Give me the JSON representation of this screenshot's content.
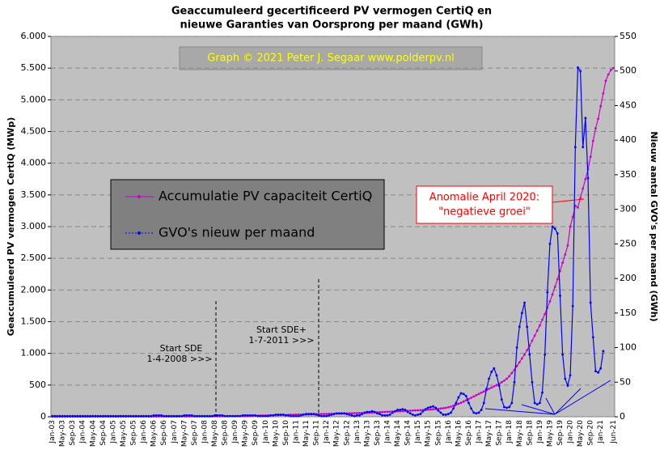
{
  "chart_data": {
    "type": "line",
    "title": [
      "Geaccumuleerd  gecertificeerd  PV  vermogen  CertiQ  en",
      "nieuwe  Garanties  van Oorsprong  per maand  (GWh)"
    ],
    "credit": "Graph  ©  2021  Peter  J.  Segaar   www.polderpv.nl",
    "ylabel": "Geaccumuleerd PV vermogen CertiQ (MWp)",
    "y2label": "Nieuw aantal GVO's per maand (GWh)",
    "annotations": [
      [
        "Start SDE",
        "1-4-2008  >>>"
      ],
      [
        "Start SDE+",
        "1-7-2011  >>>"
      ],
      [
        "Anomalie  April  2020:",
        "\"negatieve groei\""
      ]
    ],
    "categories": [
      "Jan-03",
      null,
      null,
      null,
      "May-03",
      null,
      null,
      null,
      "Sep-03",
      null,
      null,
      null,
      "Jan-04",
      null,
      null,
      null,
      "May-04",
      null,
      null,
      null,
      "Sep-04",
      null,
      null,
      null,
      "Jan-05",
      null,
      null,
      null,
      "May-05",
      null,
      null,
      null,
      "Sep-05",
      null,
      null,
      null,
      "Jan-06",
      null,
      null,
      null,
      "May-06",
      null,
      null,
      null,
      "Sep-06",
      null,
      null,
      null,
      "Jan-07",
      null,
      null,
      null,
      "May-07",
      null,
      null,
      null,
      "Sep-07",
      null,
      null,
      null,
      "Jan-08",
      null,
      null,
      null,
      "May-08",
      null,
      null,
      null,
      "Sep-08",
      null,
      null,
      null,
      "Jan-09",
      null,
      null,
      null,
      "May-09",
      null,
      null,
      null,
      "Sep-09",
      null,
      null,
      null,
      "Jan-10",
      null,
      null,
      null,
      "May-10",
      null,
      null,
      null,
      "Sep-10",
      null,
      null,
      null,
      "Jan-11",
      null,
      null,
      null,
      "May-11",
      null,
      null,
      null,
      "Sep-11",
      null,
      null,
      null,
      "Jan-12",
      null,
      null,
      null,
      "May-12",
      null,
      null,
      null,
      "Sep-12",
      null,
      null,
      null,
      "Jan-13",
      null,
      null,
      null,
      "May-13",
      null,
      null,
      null,
      "Sep-13",
      null,
      null,
      null,
      "Jan-14",
      null,
      null,
      null,
      "May-14",
      null,
      null,
      null,
      "Sep-14",
      null,
      null,
      null,
      "Jan-15",
      null,
      null,
      null,
      "May-15",
      null,
      null,
      null,
      "Sep-15",
      null,
      null,
      null,
      "Jan-16",
      null,
      null,
      null,
      "May-16",
      null,
      null,
      null,
      "Sep-16",
      null,
      null,
      null,
      "Jan-17",
      null,
      null,
      null,
      "May-17",
      null,
      null,
      null,
      "Sep-17",
      null,
      null,
      null,
      "Jan-18",
      null,
      null,
      null,
      "May-18",
      null,
      null,
      null,
      "Sep-18",
      null,
      null,
      null,
      "Jan-19",
      null,
      null,
      null,
      "May-19",
      null,
      null,
      null,
      "Sep-19",
      null,
      null,
      null,
      "Jan-20",
      null,
      null,
      null,
      "May-20",
      null,
      null,
      null,
      "Sep-20",
      null,
      null,
      null,
      "Jan-21",
      null,
      null,
      null,
      null,
      "Jun-21"
    ],
    "series": [
      {
        "name": "Accumulatie PV capaciteit CertiQ",
        "color": "#cc00cc",
        "values": [
          1,
          1,
          1,
          1,
          1,
          1,
          2,
          2,
          2,
          2,
          2,
          2,
          2,
          2,
          2,
          2,
          3,
          3,
          3,
          3,
          3,
          3,
          3,
          3,
          3,
          3,
          3,
          4,
          4,
          4,
          4,
          4,
          4,
          4,
          4,
          4,
          4,
          4,
          4,
          5,
          5,
          5,
          5,
          5,
          5,
          5,
          5,
          5,
          5,
          5,
          5,
          6,
          6,
          6,
          6,
          6,
          6,
          6,
          6,
          7,
          7,
          7,
          7,
          7,
          8,
          8,
          8,
          9,
          9,
          9,
          10,
          10,
          10,
          11,
          11,
          12,
          13,
          14,
          15,
          16,
          17,
          18,
          19,
          20,
          21,
          22,
          23,
          24,
          25,
          26,
          27,
          28,
          29,
          30,
          31,
          32,
          33,
          34,
          35,
          36,
          37,
          38,
          39,
          40,
          41,
          42,
          43,
          44,
          45,
          46,
          47,
          48,
          49,
          50,
          51,
          52,
          53,
          54,
          55,
          56,
          57,
          58,
          59,
          60,
          62,
          64,
          66,
          68,
          70,
          72,
          74,
          76,
          78,
          80,
          82,
          84,
          86,
          88,
          90,
          92,
          94,
          96,
          98,
          100,
          102,
          104,
          106,
          109,
          112,
          115,
          118,
          121,
          125,
          130,
          135,
          140,
          150,
          160,
          175,
          190,
          205,
          220,
          240,
          260,
          280,
          300,
          320,
          340,
          360,
          380,
          400,
          420,
          440,
          460,
          480,
          500,
          520,
          545,
          570,
          600,
          640,
          690,
          740,
          800,
          860,
          920,
          980,
          1050,
          1120,
          1200,
          1280,
          1360,
          1440,
          1530,
          1620,
          1720,
          1820,
          1930,
          2050,
          2170,
          2300,
          2430,
          2560,
          2700,
          3000,
          3150,
          3330,
          3300,
          3450,
          3600,
          3750,
          3900,
          4100,
          4350,
          4550,
          4700,
          4900,
          5100,
          5300,
          5400,
          5470,
          5500
        ]
      },
      {
        "name": "GVO's nieuw per maand",
        "color": "#0000ff",
        "axis": "y2",
        "values": [
          1,
          1,
          1,
          1,
          1,
          1,
          1,
          1,
          1,
          1,
          1,
          1,
          1,
          1,
          1,
          1,
          1,
          1,
          1,
          1,
          1,
          1,
          1,
          1,
          1,
          1,
          1,
          1,
          1,
          1,
          1,
          1,
          1,
          1,
          1,
          1,
          1,
          1,
          1,
          1,
          2,
          2,
          2,
          2,
          1,
          1,
          1,
          1,
          1,
          1,
          1,
          1,
          2,
          2,
          2,
          2,
          1,
          1,
          1,
          1,
          1,
          1,
          1,
          1,
          2,
          2,
          2,
          2,
          1,
          1,
          1,
          1,
          1,
          1,
          1,
          2,
          2,
          2,
          2,
          2,
          2,
          1,
          1,
          1,
          1,
          1,
          2,
          2,
          3,
          3,
          3,
          3,
          2,
          2,
          1,
          1,
          1,
          1,
          2,
          3,
          4,
          4,
          4,
          4,
          3,
          2,
          1,
          1,
          1,
          2,
          3,
          4,
          5,
          5,
          5,
          5,
          4,
          3,
          2,
          1,
          2,
          2,
          4,
          6,
          7,
          7,
          8,
          7,
          5,
          4,
          2,
          2,
          2,
          3,
          6,
          8,
          10,
          10,
          11,
          10,
          7,
          5,
          3,
          2,
          3,
          4,
          8,
          11,
          13,
          14,
          15,
          13,
          9,
          6,
          3,
          3,
          4,
          6,
          12,
          20,
          28,
          34,
          33,
          30,
          20,
          12,
          6,
          5,
          6,
          10,
          20,
          40,
          55,
          65,
          70,
          60,
          45,
          25,
          14,
          13,
          14,
          20,
          50,
          100,
          130,
          150,
          165,
          130,
          90,
          50,
          20,
          18,
          20,
          35,
          90,
          180,
          250,
          275,
          272,
          265,
          175,
          90,
          55,
          45,
          60,
          160,
          390,
          505,
          500,
          390,
          432,
          345,
          165,
          115,
          66,
          64,
          70,
          95,
          null,
          null,
          null,
          null
        ]
      }
    ],
    "ylim": [
      0,
      6000
    ],
    "yticks": [
      {
        "value": 0,
        "label": "0"
      },
      {
        "value": 500,
        "label": "500"
      },
      {
        "value": 1000,
        "label": "1.000"
      },
      {
        "value": 1500,
        "label": "1.500"
      },
      {
        "value": 2000,
        "label": "2.000"
      },
      {
        "value": 2500,
        "label": "2.500"
      },
      {
        "value": 3000,
        "label": "3.000"
      },
      {
        "value": 3500,
        "label": "3.500"
      },
      {
        "value": 4000,
        "label": "4.000"
      },
      {
        "value": 4500,
        "label": "4.500"
      },
      {
        "value": 5000,
        "label": "5.000"
      },
      {
        "value": 5500,
        "label": "5.500"
      },
      {
        "value": 6000,
        "label": "6.000"
      }
    ],
    "y2lim": [
      0,
      550
    ],
    "y2ticks": [
      0,
      50,
      100,
      150,
      200,
      250,
      300,
      350,
      400,
      450,
      500,
      550
    ],
    "grid": true
  }
}
